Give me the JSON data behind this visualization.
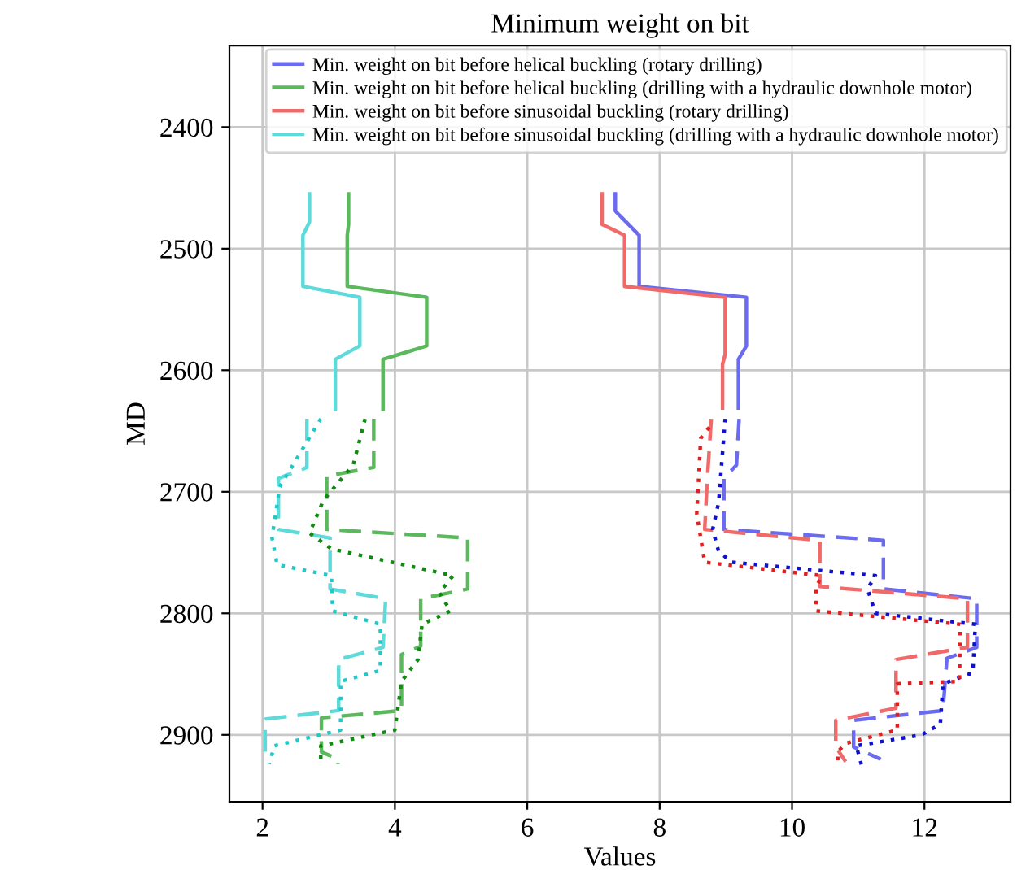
{
  "chart_data": {
    "type": "line",
    "title": "Minimum weight on bit",
    "xlabel": "Values",
    "ylabel": "MD",
    "xlim": [
      1.5,
      13.3
    ],
    "ylim": [
      2955,
      2333
    ],
    "xticks": [
      2,
      4,
      6,
      8,
      10,
      12
    ],
    "yticks": [
      2400,
      2500,
      2600,
      2700,
      2800,
      2900
    ],
    "grid": true,
    "legend": "top",
    "series": [
      {
        "name": "Min. weight on bit before helical buckling (rotary drilling)",
        "color": "#6b6bf0",
        "line_style": "solid",
        "x": [
          7.33,
          7.33,
          7.69,
          7.69,
          9.31,
          9.31,
          9.19,
          9.19
        ],
        "values": [
          2455,
          2469,
          2489,
          2531,
          2540,
          2580,
          2591,
          2631
        ]
      },
      {
        "name": "Min. weight on bit before helical buckling (drilling with a hydraulic downhole motor)",
        "color": "#5cb85c",
        "line_style": "solid",
        "x": [
          3.3,
          3.3,
          3.28,
          3.28,
          4.48,
          4.48,
          3.82,
          3.82
        ],
        "values": [
          2455,
          2480,
          2489,
          2531,
          2540,
          2580,
          2591,
          2632
        ]
      },
      {
        "name": "Min. weight on bit before sinusoidal buckling (rotary drilling)",
        "color": "#f06a6a",
        "line_style": "solid",
        "x": [
          7.13,
          7.13,
          7.47,
          7.47,
          8.99,
          8.99,
          8.95,
          8.95
        ],
        "values": [
          2455,
          2480,
          2489,
          2531,
          2540,
          2587,
          2595,
          2631
        ]
      },
      {
        "name": "Min. weight on bit before sinusoidal buckling (drilling with a hydraulic downhole motor)",
        "color": "#5fdada",
        "line_style": "solid",
        "x": [
          2.71,
          2.71,
          2.61,
          2.61,
          3.47,
          3.47,
          3.1,
          3.1
        ],
        "values": [
          2455,
          2478,
          2489,
          2531,
          2540,
          2580,
          2591,
          2632
        ]
      },
      {
        "color": "#6b6bf0",
        "line_style": "dashed",
        "x": [
          9.2,
          9.16,
          8.97,
          8.97,
          11.38,
          11.38,
          12.79,
          12.79,
          12.34,
          12.28,
          10.93,
          10.93,
          11.34
        ],
        "values": [
          2640,
          2678,
          2689,
          2731,
          2740,
          2780,
          2788,
          2828,
          2837,
          2880,
          2888,
          2910,
          2920
        ]
      },
      {
        "color": "#5cb85c",
        "line_style": "dashed",
        "x": [
          3.68,
          3.68,
          2.97,
          2.97,
          5.1,
          5.1,
          4.39,
          4.39,
          4.1,
          4.1,
          2.89,
          2.89,
          3.14,
          3.14
        ],
        "values": [
          2640,
          2680,
          2687,
          2731,
          2738,
          2780,
          2788,
          2827,
          2834,
          2880,
          2886,
          2914,
          2920,
          2924
        ]
      },
      {
        "color": "#f06a6a",
        "line_style": "dashed",
        "x": [
          8.78,
          8.72,
          8.68,
          10.42,
          10.42,
          12.65,
          12.65,
          11.57,
          11.57,
          10.66,
          10.66,
          10.81
        ],
        "values": [
          2640,
          2689,
          2731,
          2740,
          2778,
          2788,
          2828,
          2838,
          2878,
          2888,
          2910,
          2922
        ]
      },
      {
        "color": "#5fdada",
        "line_style": "dashed",
        "x": [
          2.67,
          2.67,
          2.24,
          2.24,
          3.02,
          3.02,
          3.86,
          3.82,
          3.15,
          3.15,
          2.04,
          2.04,
          2.1
        ],
        "values": [
          2640,
          2680,
          2689,
          2731,
          2738,
          2780,
          2788,
          2828,
          2838,
          2880,
          2887,
          2914,
          2922
        ]
      },
      {
        "color": "#1010d0",
        "line_style": "dotted",
        "x": [
          8.99,
          8.89,
          8.8,
          8.89,
          9.09,
          11.26,
          11.14,
          11.26,
          12.77,
          12.73,
          12.28,
          12.24,
          11.96,
          10.97,
          11.05
        ],
        "values": [
          2640,
          2709,
          2731,
          2749,
          2758,
          2769,
          2780,
          2800,
          2809,
          2849,
          2858,
          2891,
          2900,
          2909,
          2925
        ]
      },
      {
        "color": "#108a10",
        "line_style": "dotted",
        "x": [
          3.55,
          3.37,
          2.92,
          2.71,
          3.04,
          4.88,
          4.67,
          4.84,
          4.41,
          4.35,
          4.1,
          4.0,
          2.88,
          2.88
        ],
        "values": [
          2640,
          2678,
          2707,
          2734,
          2747,
          2769,
          2783,
          2798,
          2809,
          2838,
          2856,
          2896,
          2909,
          2920
        ]
      },
      {
        "color": "#e02020",
        "line_style": "dotted",
        "x": [
          8.75,
          8.62,
          8.56,
          8.68,
          10.44,
          10.36,
          10.36,
          12.54,
          12.53,
          11.59,
          11.59,
          10.81,
          10.69,
          10.69
        ],
        "values": [
          2647,
          2656,
          2718,
          2758,
          2769,
          2780,
          2798,
          2809,
          2856,
          2858,
          2896,
          2907,
          2914,
          2925
        ]
      },
      {
        "color": "#20c8c8",
        "line_style": "dotted",
        "x": [
          2.88,
          2.26,
          2.18,
          2.14,
          2.22,
          3.04,
          3.06,
          3.78,
          3.78,
          3.18,
          3.18,
          2.18,
          2.1
        ],
        "values": [
          2640,
          2696,
          2725,
          2737,
          2760,
          2769,
          2798,
          2809,
          2847,
          2856,
          2896,
          2909,
          2924
        ]
      }
    ]
  }
}
